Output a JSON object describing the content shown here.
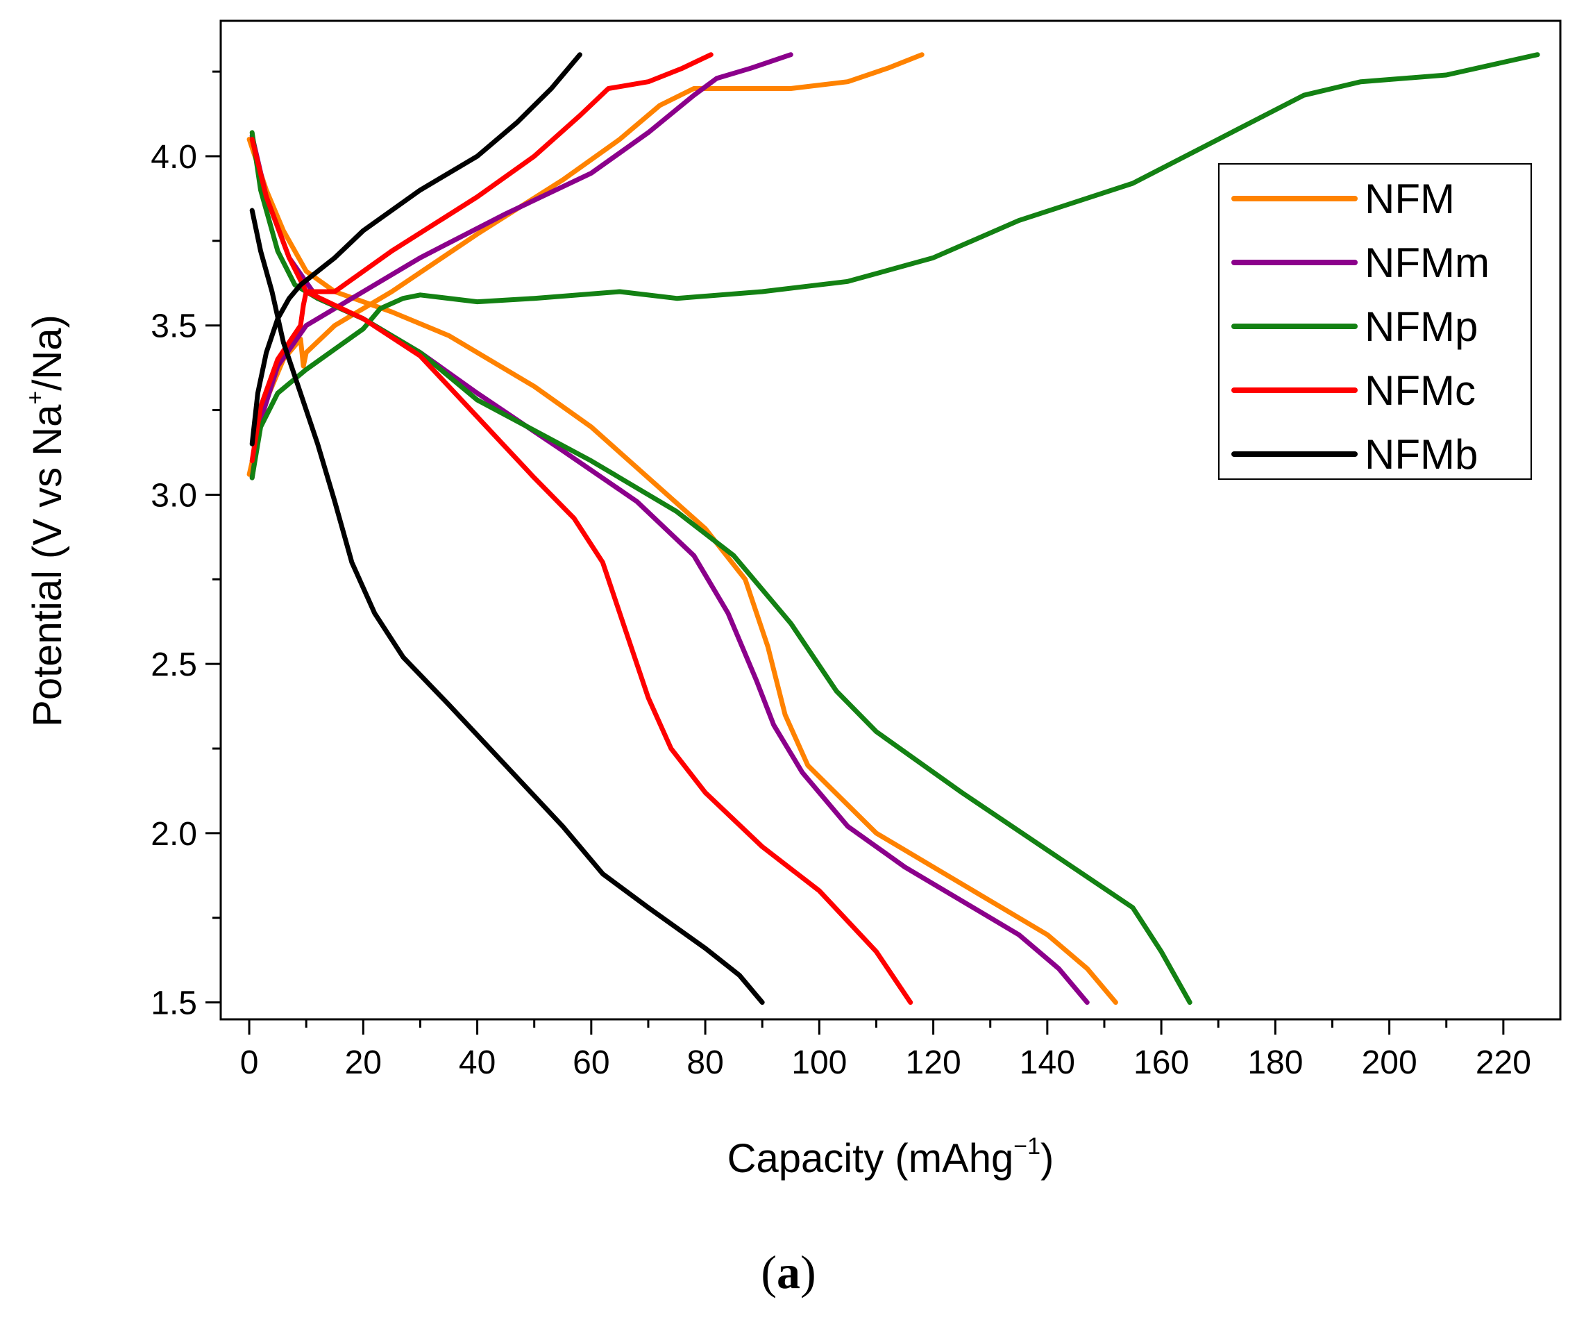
{
  "chart_data": {
    "type": "line",
    "title": "",
    "xlabel": {
      "main": "Capacity (mAhg",
      "sup": "−1",
      "tail": ")"
    },
    "ylabel": {
      "main": "Potential (V vs Na",
      "sup": "+",
      "tail": "/Na)"
    },
    "xlim": [
      -5,
      230
    ],
    "ylim": [
      1.45,
      4.4
    ],
    "x_ticks": [
      0,
      20,
      40,
      60,
      80,
      100,
      120,
      140,
      160,
      180,
      200,
      220
    ],
    "x_tick_labels": [
      "0",
      "20",
      "40",
      "60",
      "80",
      "100",
      "120",
      "140",
      "160",
      "180",
      "200",
      "220"
    ],
    "y_ticks": [
      1.5,
      2.0,
      2.5,
      3.0,
      3.5,
      4.0
    ],
    "y_tick_labels": [
      "1.5",
      "2.0",
      "2.5",
      "3.0",
      "3.5",
      "4.0"
    ],
    "grid": false,
    "legend": "top-right",
    "panel_label": {
      "open": "(",
      "letter": "a",
      "close": ")"
    },
    "series": [
      {
        "name": "NFM",
        "color": "#ff8200",
        "charge": [
          [
            0,
            3.06
          ],
          [
            3,
            3.28
          ],
          [
            6,
            3.4
          ],
          [
            9,
            3.46
          ],
          [
            9.5,
            3.38
          ],
          [
            10,
            3.42
          ],
          [
            15,
            3.5
          ],
          [
            25,
            3.6
          ],
          [
            40,
            3.77
          ],
          [
            55,
            3.93
          ],
          [
            65,
            4.05
          ],
          [
            72,
            4.15
          ],
          [
            78,
            4.2
          ],
          [
            95,
            4.2
          ],
          [
            105,
            4.22
          ],
          [
            112,
            4.26
          ],
          [
            118,
            4.3
          ]
        ],
        "discharge": [
          [
            0,
            4.05
          ],
          [
            3,
            3.9
          ],
          [
            6,
            3.78
          ],
          [
            10,
            3.66
          ],
          [
            15,
            3.6
          ],
          [
            25,
            3.54
          ],
          [
            35,
            3.47
          ],
          [
            50,
            3.32
          ],
          [
            60,
            3.2
          ],
          [
            70,
            3.05
          ],
          [
            80,
            2.9
          ],
          [
            87,
            2.75
          ],
          [
            91,
            2.55
          ],
          [
            94,
            2.35
          ],
          [
            98,
            2.2
          ],
          [
            110,
            2.0
          ],
          [
            120,
            1.9
          ],
          [
            130,
            1.8
          ],
          [
            140,
            1.7
          ],
          [
            147,
            1.6
          ],
          [
            152,
            1.5
          ]
        ]
      },
      {
        "name": "NFMm",
        "color": "#8b008b",
        "charge": [
          [
            0.5,
            3.05
          ],
          [
            2,
            3.22
          ],
          [
            5,
            3.38
          ],
          [
            10,
            3.5
          ],
          [
            20,
            3.6
          ],
          [
            30,
            3.7
          ],
          [
            45,
            3.83
          ],
          [
            60,
            3.95
          ],
          [
            70,
            4.07
          ],
          [
            78,
            4.18
          ],
          [
            82,
            4.23
          ],
          [
            88,
            4.26
          ],
          [
            95,
            4.3
          ]
        ],
        "discharge": [
          [
            0.5,
            4.06
          ],
          [
            3,
            3.88
          ],
          [
            7,
            3.7
          ],
          [
            12,
            3.58
          ],
          [
            20,
            3.52
          ],
          [
            30,
            3.42
          ],
          [
            40,
            3.3
          ],
          [
            55,
            3.13
          ],
          [
            68,
            2.98
          ],
          [
            78,
            2.82
          ],
          [
            84,
            2.65
          ],
          [
            89,
            2.45
          ],
          [
            92,
            2.32
          ],
          [
            97,
            2.18
          ],
          [
            105,
            2.02
          ],
          [
            115,
            1.9
          ],
          [
            125,
            1.8
          ],
          [
            135,
            1.7
          ],
          [
            142,
            1.6
          ],
          [
            147,
            1.5
          ]
        ]
      },
      {
        "name": "NFMp",
        "color": "#138113",
        "charge": [
          [
            0.5,
            3.05
          ],
          [
            2,
            3.2
          ],
          [
            5,
            3.3
          ],
          [
            10,
            3.37
          ],
          [
            15,
            3.43
          ],
          [
            20,
            3.49
          ],
          [
            23,
            3.55
          ],
          [
            27,
            3.58
          ],
          [
            30,
            3.59
          ],
          [
            40,
            3.57
          ],
          [
            50,
            3.58
          ],
          [
            65,
            3.6
          ],
          [
            75,
            3.58
          ],
          [
            90,
            3.6
          ],
          [
            105,
            3.63
          ],
          [
            120,
            3.7
          ],
          [
            135,
            3.81
          ],
          [
            155,
            3.92
          ],
          [
            170,
            4.05
          ],
          [
            185,
            4.18
          ],
          [
            195,
            4.22
          ],
          [
            210,
            4.24
          ],
          [
            226,
            4.3
          ]
        ],
        "discharge": [
          [
            0.5,
            4.07
          ],
          [
            2,
            3.9
          ],
          [
            5,
            3.72
          ],
          [
            8,
            3.62
          ],
          [
            12,
            3.58
          ],
          [
            20,
            3.52
          ],
          [
            30,
            3.42
          ],
          [
            40,
            3.28
          ],
          [
            60,
            3.1
          ],
          [
            75,
            2.95
          ],
          [
            85,
            2.82
          ],
          [
            95,
            2.62
          ],
          [
            103,
            2.42
          ],
          [
            110,
            2.3
          ],
          [
            125,
            2.12
          ],
          [
            140,
            1.95
          ],
          [
            155,
            1.78
          ],
          [
            160,
            1.65
          ],
          [
            165,
            1.5
          ]
        ]
      },
      {
        "name": "NFMc",
        "color": "#ff0000",
        "charge": [
          [
            0.5,
            3.1
          ],
          [
            2,
            3.26
          ],
          [
            5,
            3.4
          ],
          [
            9,
            3.5
          ],
          [
            9.5,
            3.56
          ],
          [
            10,
            3.6
          ],
          [
            15,
            3.6
          ],
          [
            25,
            3.72
          ],
          [
            40,
            3.88
          ],
          [
            50,
            4.0
          ],
          [
            58,
            4.12
          ],
          [
            63,
            4.2
          ],
          [
            70,
            4.22
          ],
          [
            76,
            4.26
          ],
          [
            81,
            4.3
          ]
        ],
        "discharge": [
          [
            0.5,
            4.05
          ],
          [
            3,
            3.88
          ],
          [
            7,
            3.7
          ],
          [
            10,
            3.6
          ],
          [
            20,
            3.52
          ],
          [
            30,
            3.41
          ],
          [
            40,
            3.23
          ],
          [
            50,
            3.05
          ],
          [
            57,
            2.93
          ],
          [
            62,
            2.8
          ],
          [
            66,
            2.6
          ],
          [
            70,
            2.4
          ],
          [
            74,
            2.25
          ],
          [
            80,
            2.12
          ],
          [
            90,
            1.96
          ],
          [
            100,
            1.83
          ],
          [
            110,
            1.65
          ],
          [
            116,
            1.5
          ]
        ]
      },
      {
        "name": "NFMb",
        "color": "#000000",
        "charge": [
          [
            0.5,
            3.15
          ],
          [
            1.5,
            3.3
          ],
          [
            3,
            3.42
          ],
          [
            5,
            3.52
          ],
          [
            7,
            3.58
          ],
          [
            9,
            3.62
          ],
          [
            12,
            3.66
          ],
          [
            15,
            3.7
          ],
          [
            20,
            3.78
          ],
          [
            30,
            3.9
          ],
          [
            40,
            4.0
          ],
          [
            47,
            4.1
          ],
          [
            53,
            4.2
          ],
          [
            58,
            4.3
          ]
        ],
        "discharge": [
          [
            0.5,
            3.84
          ],
          [
            2,
            3.72
          ],
          [
            4,
            3.6
          ],
          [
            6,
            3.45
          ],
          [
            9,
            3.3
          ],
          [
            12,
            3.15
          ],
          [
            15,
            2.98
          ],
          [
            18,
            2.8
          ],
          [
            22,
            2.65
          ],
          [
            27,
            2.52
          ],
          [
            35,
            2.38
          ],
          [
            45,
            2.2
          ],
          [
            55,
            2.02
          ],
          [
            62,
            1.88
          ],
          [
            70,
            1.78
          ],
          [
            80,
            1.66
          ],
          [
            86,
            1.58
          ],
          [
            90,
            1.5
          ]
        ]
      }
    ]
  }
}
